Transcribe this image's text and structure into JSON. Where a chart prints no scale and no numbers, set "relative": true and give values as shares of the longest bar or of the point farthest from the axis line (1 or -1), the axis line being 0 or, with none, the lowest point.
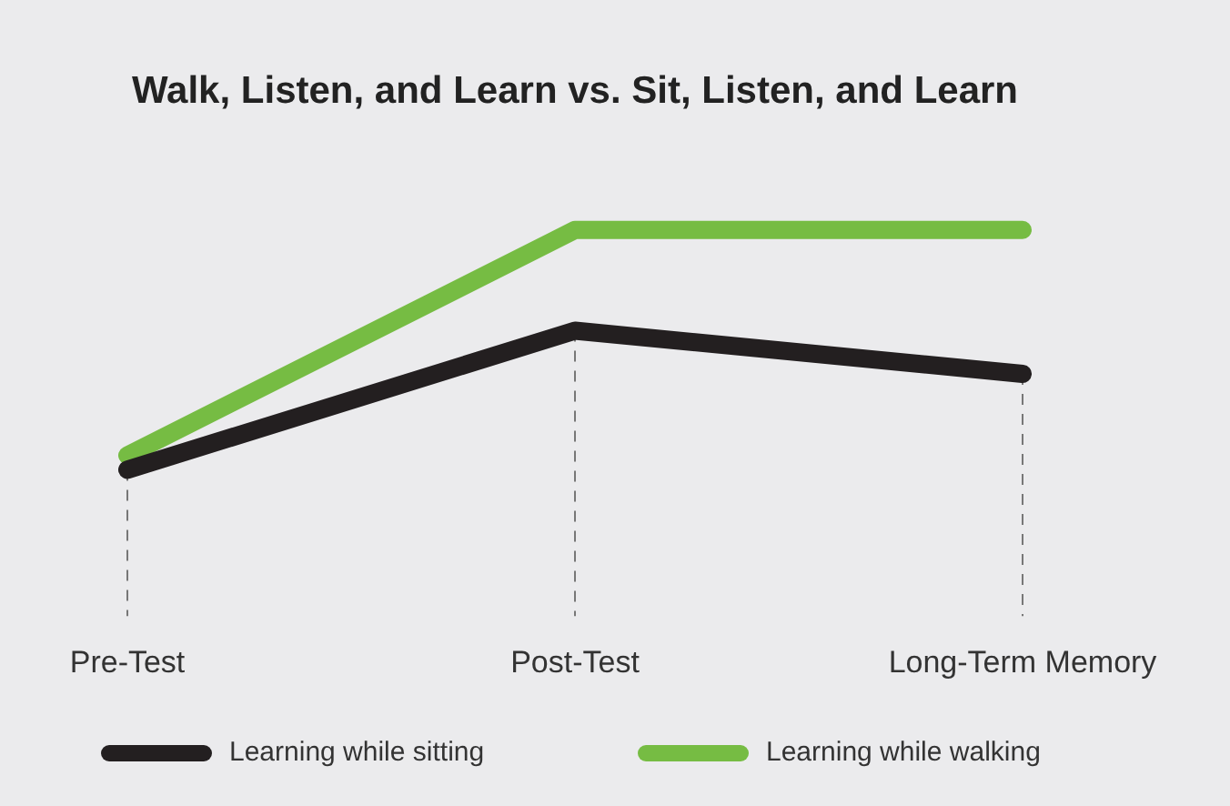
{
  "chart_data": {
    "type": "line",
    "title": "Walk, Listen, and Learn vs. Sit, Listen, and Learn",
    "categories": [
      "Pre-Test",
      "Post-Test",
      "Long-Term Memory"
    ],
    "relative": true,
    "grid": "x",
    "legend": "bottom",
    "marker": "none",
    "line_style": "solid",
    "series": [
      {
        "name": "Learning while sitting",
        "color": "#231f20",
        "values": [
          0,
          0.58,
          0.4
        ]
      },
      {
        "name": "Learning while walking",
        "color": "#76bc43",
        "values": [
          0.06,
          1,
          1
        ]
      }
    ]
  }
}
